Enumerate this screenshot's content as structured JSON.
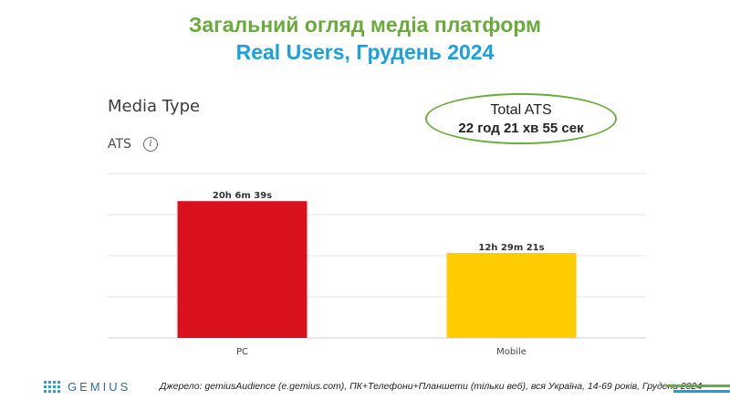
{
  "header": {
    "title_line1": "Загальний огляд медіа платформ",
    "title_line2": "Real Users, Грудень 2024"
  },
  "panel": {
    "title": "Media Type",
    "metric": "ATS",
    "info_icon": "info-icon"
  },
  "total": {
    "label": "Total ATS",
    "value": "22 год 21 хв 55 сек"
  },
  "chart_data": {
    "type": "bar",
    "categories": [
      "PC",
      "Mobile"
    ],
    "values": [
      1206.65,
      749.35
    ],
    "value_labels": [
      "20h 6m 39s",
      "12h 29m 21s"
    ],
    "colors": [
      "#d9111e",
      "#ffcc00"
    ],
    "ylim": [
      0,
      1450
    ],
    "grid": true
  },
  "footer": {
    "logo_text": "GEMIUS",
    "source": "Джерело: gemiusAudience (e.gemius.com), ПК+Телефони+Планшети (тільки веб), вся Україна, 14-69 років, Грудень 2024",
    "accent_green": "#6aab3c",
    "accent_blue": "#1aa0dc"
  }
}
